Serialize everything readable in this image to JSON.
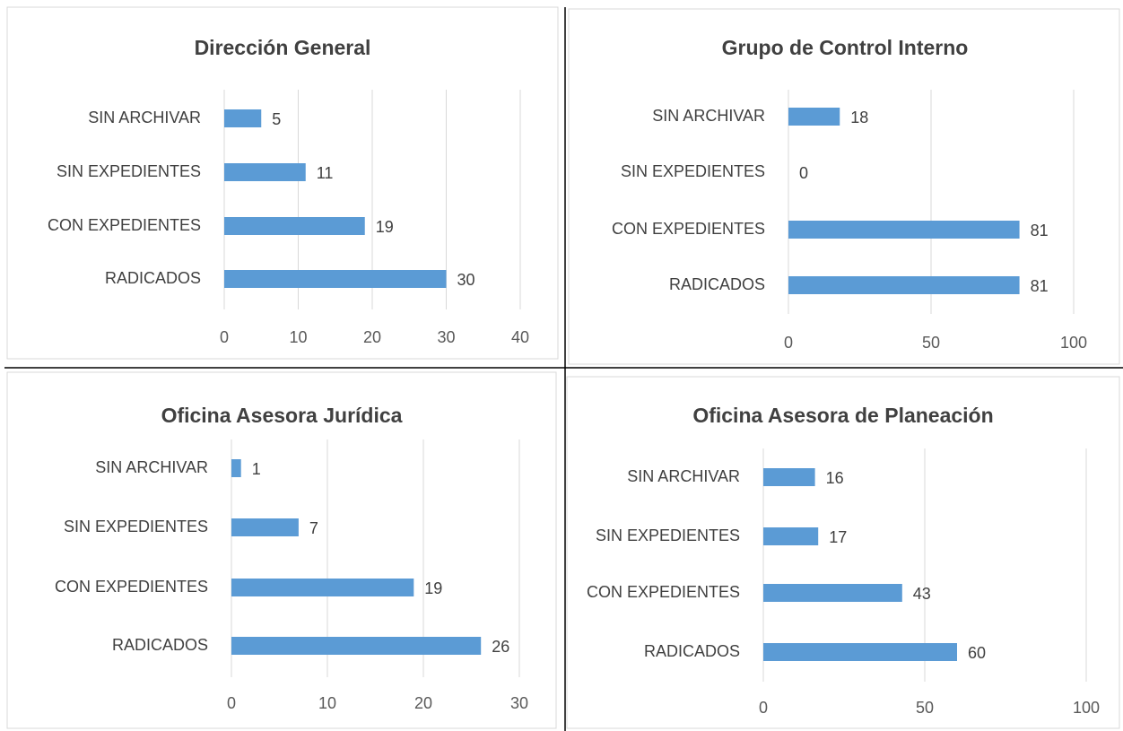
{
  "chart_data": [
    {
      "type": "bar",
      "orientation": "horizontal",
      "title": "Dirección General",
      "categories": [
        "SIN ARCHIVAR",
        "SIN EXPEDIENTES",
        "CON EXPEDIENTES",
        "RADICADOS"
      ],
      "values": [
        5,
        11,
        19,
        30
      ],
      "color": "#5b9bd5",
      "xlim": [
        0,
        40
      ],
      "xticks": [
        0,
        10,
        20,
        30,
        40
      ],
      "grid": true
    },
    {
      "type": "bar",
      "orientation": "horizontal",
      "title": "Grupo de Control Interno",
      "categories": [
        "SIN ARCHIVAR",
        "SIN EXPEDIENTES",
        "CON EXPEDIENTES",
        "RADICADOS"
      ],
      "values": [
        18,
        0,
        81,
        81
      ],
      "color": "#5b9bd5",
      "xlim": [
        0,
        100
      ],
      "xticks": [
        0,
        50,
        100
      ],
      "grid": true
    },
    {
      "type": "bar",
      "orientation": "horizontal",
      "title": "Oficina Asesora Jurídica",
      "categories": [
        "SIN ARCHIVAR",
        "SIN EXPEDIENTES",
        "CON EXPEDIENTES",
        "RADICADOS"
      ],
      "values": [
        1,
        7,
        19,
        26
      ],
      "color": "#5b9bd5",
      "xlim": [
        0,
        30
      ],
      "xticks": [
        0,
        10,
        20,
        30
      ],
      "grid": true
    },
    {
      "type": "bar",
      "orientation": "horizontal",
      "title": "Oficina Asesora de Planeación",
      "categories": [
        "SIN ARCHIVAR",
        "SIN EXPEDIENTES",
        "CON EXPEDIENTES",
        "RADICADOS"
      ],
      "values": [
        16,
        17,
        43,
        60
      ],
      "color": "#5b9bd5",
      "xlim": [
        0,
        100
      ],
      "xticks": [
        0,
        50,
        100
      ],
      "grid": true
    }
  ]
}
